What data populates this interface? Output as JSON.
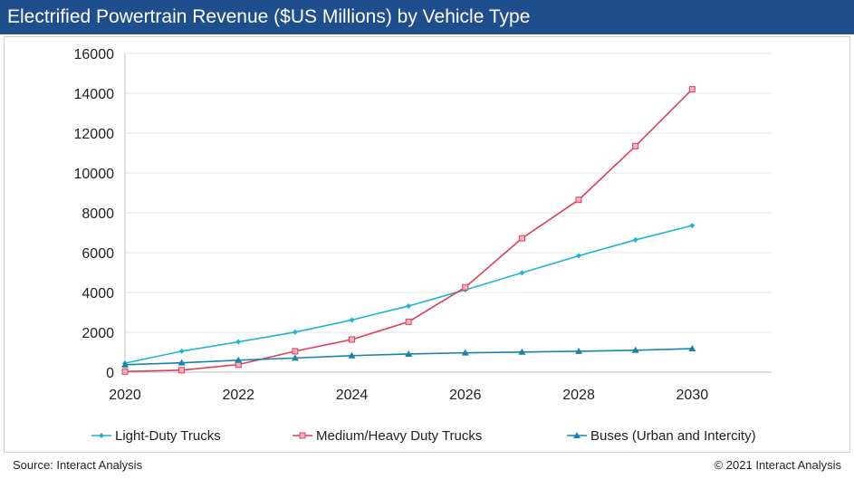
{
  "header": {
    "title": "Electrified Powertrain Revenue ($US Millions) by Vehicle Type"
  },
  "footer": {
    "source": "Source: Interact Analysis",
    "copyright": "© 2021 Interact Analysis"
  },
  "chart_data": {
    "type": "line",
    "title": "Electrified Powertrain Revenue ($US Millions) by Vehicle Type",
    "x": [
      2020,
      2021,
      2022,
      2023,
      2024,
      2025,
      2026,
      2027,
      2028,
      2029,
      2030
    ],
    "xticks": [
      2020,
      2022,
      2024,
      2026,
      2028,
      2030
    ],
    "xlim": [
      2020,
      2031.4
    ],
    "ylim": [
      0,
      16000
    ],
    "yticks": [
      0,
      2000,
      4000,
      6000,
      8000,
      10000,
      12000,
      14000,
      16000
    ],
    "grid": true,
    "legend": "bottom",
    "series": [
      {
        "name": "Light-Duty Trucks",
        "color": "#1cb4d4",
        "marker": "diamond",
        "values": [
          450,
          1050,
          1520,
          2010,
          2620,
          3320,
          4130,
          4990,
          5840,
          6640,
          7360
        ]
      },
      {
        "name": "Medium/Heavy Duty Trucks",
        "color": "#e23d5a",
        "marker": "square",
        "values": [
          30,
          100,
          380,
          1050,
          1640,
          2530,
          4260,
          6720,
          8650,
          11350,
          14200
        ]
      },
      {
        "name": "Buses (Urban and Intercity)",
        "color": "#1a82ad",
        "marker": "triangle",
        "values": [
          370,
          470,
          600,
          710,
          830,
          910,
          970,
          1010,
          1050,
          1100,
          1180
        ]
      }
    ]
  }
}
